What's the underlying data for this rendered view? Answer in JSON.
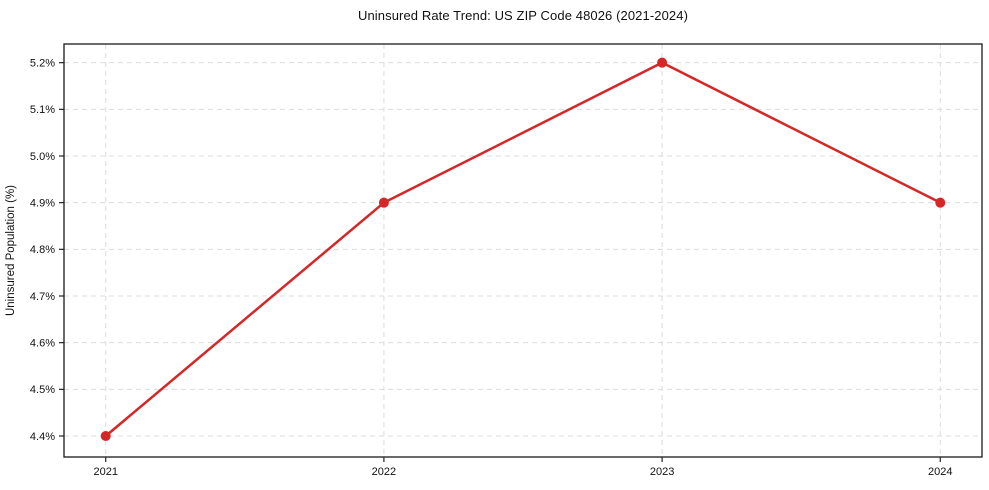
{
  "chart_data": {
    "type": "line",
    "title": "Uninsured Rate Trend: US ZIP Code 48026 (2021-2024)",
    "xlabel": "",
    "ylabel": "Uninsured Population (%)",
    "x": [
      2021,
      2022,
      2023,
      2024
    ],
    "x_labels": [
      "2021",
      "2022",
      "2023",
      "2024"
    ],
    "series": [
      {
        "name": "Uninsured Population (%)",
        "values": [
          4.4,
          4.9,
          5.2,
          4.9
        ]
      }
    ],
    "ytick_values": [
      4.4,
      4.5,
      4.6,
      4.7,
      4.8,
      4.9,
      5.0,
      5.1,
      5.2
    ],
    "ytick_labels": [
      "4.4%",
      "4.5%",
      "4.6%",
      "4.7%",
      "4.8%",
      "4.9%",
      "5.0%",
      "5.1%",
      "5.2%"
    ],
    "ylim": [
      4.355,
      5.24
    ],
    "xlim": [
      2020.85,
      2024.15
    ],
    "grid": true,
    "legend": "none",
    "colors": {
      "line": "#d62728",
      "marker": "#d62728",
      "grid": "#dcdcdc",
      "spine": "#1a1a1a",
      "tick": "#222222",
      "text": "#111111",
      "background": "#ffffff"
    }
  }
}
